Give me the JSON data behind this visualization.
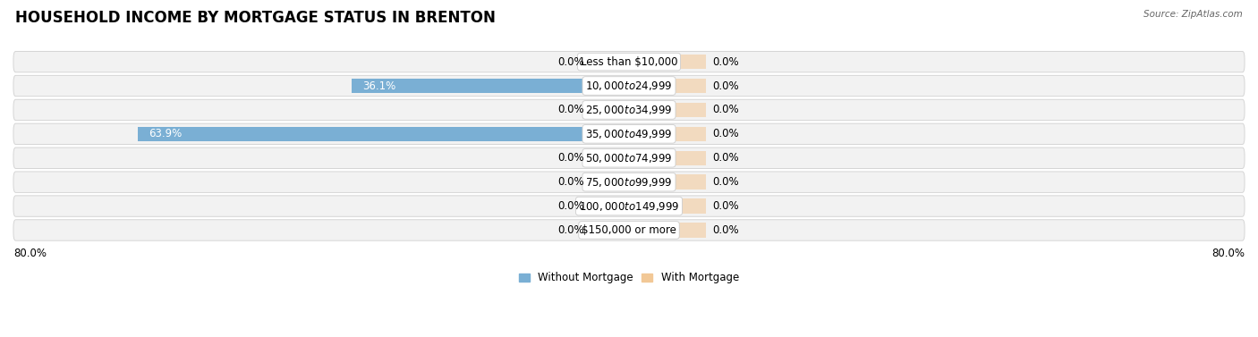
{
  "title": "HOUSEHOLD INCOME BY MORTGAGE STATUS IN BRENTON",
  "source": "Source: ZipAtlas.com",
  "categories": [
    "Less than $10,000",
    "$10,000 to $24,999",
    "$25,000 to $34,999",
    "$35,000 to $49,999",
    "$50,000 to $74,999",
    "$75,000 to $99,999",
    "$100,000 to $149,999",
    "$150,000 or more"
  ],
  "without_mortgage": [
    0.0,
    36.1,
    0.0,
    63.9,
    0.0,
    0.0,
    0.0,
    0.0
  ],
  "with_mortgage": [
    0.0,
    0.0,
    0.0,
    0.0,
    0.0,
    0.0,
    0.0,
    0.0
  ],
  "xlim": 80.0,
  "color_without": "#7aafd4",
  "color_with": "#f2c896",
  "bg_row_color": "#f2f2f2",
  "legend_labels": [
    "Without Mortgage",
    "With Mortgage"
  ],
  "axis_label_left": "80.0%",
  "axis_label_right": "80.0%",
  "title_fontsize": 12,
  "label_fontsize": 8.5,
  "category_fontsize": 8.5,
  "zero_stub": 5.0,
  "with_mortgage_stub": 10.0
}
